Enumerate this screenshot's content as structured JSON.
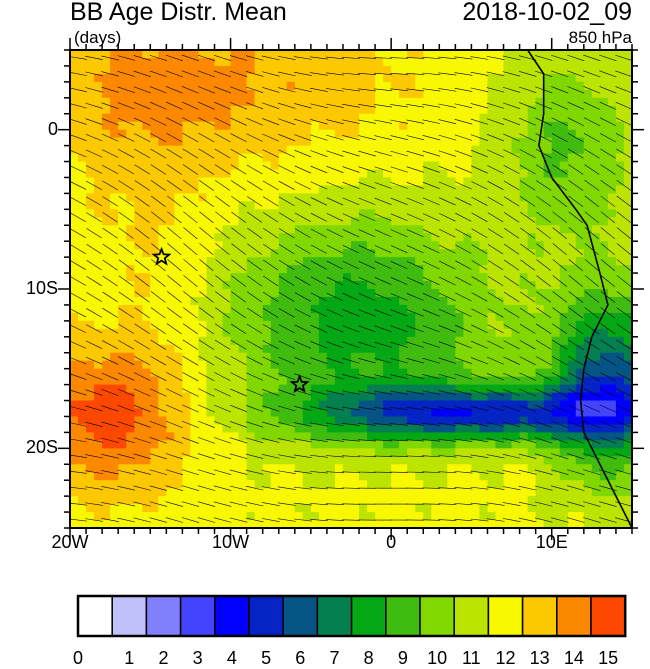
{
  "header": {
    "title": "BB Age Distr. Mean",
    "date": "2018-10-02_09",
    "units": "(days)",
    "level": "850 hPa"
  },
  "map": {
    "lon_range": [
      -20,
      15
    ],
    "lat_range": [
      -25,
      5
    ],
    "y_ticks": [
      {
        "lat": 0,
        "label": "0"
      },
      {
        "lat": -10,
        "label": "10S"
      },
      {
        "lat": -20,
        "label": "20S"
      }
    ],
    "x_ticks": [
      {
        "lon": -20,
        "label": "20W"
      },
      {
        "lon": -10,
        "label": "10W"
      },
      {
        "lon": 0,
        "label": "0"
      },
      {
        "lon": 10,
        "label": "10E"
      }
    ],
    "markers": [
      {
        "type": "star",
        "lon": -14.3,
        "lat": -8
      },
      {
        "type": "star",
        "lon": -5.7,
        "lat": -16
      }
    ],
    "overlay": "wind-barbs"
  },
  "colorbar": {
    "labels": [
      "0",
      "1",
      "2",
      "3",
      "4",
      "5",
      "6",
      "7",
      "8",
      "9",
      "10",
      "11",
      "12",
      "13",
      "14",
      "15"
    ],
    "colors": [
      "#ffffff",
      "#c0c0fc",
      "#8080fc",
      "#4444fc",
      "#0000fc",
      "#0424c4",
      "#045484",
      "#048050",
      "#04a814",
      "#40bc10",
      "#80d800",
      "#bce400",
      "#f8f800",
      "#fcc800",
      "#fc8800",
      "#fc4800",
      "#fc0c00"
    ]
  }
}
